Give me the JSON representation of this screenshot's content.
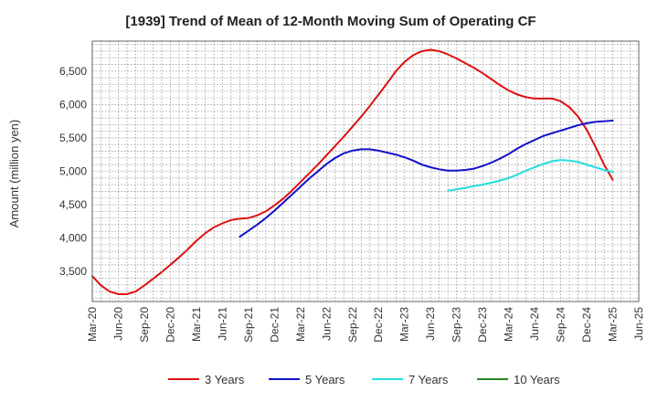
{
  "chart_data": {
    "type": "line",
    "title": "[1939]  Trend of Mean of 12-Month Moving Sum of Operating CF",
    "xlabel": "",
    "ylabel": "Amount (million yen)",
    "x_ticks": [
      "Mar-20",
      "Jun-20",
      "Sep-20",
      "Dec-20",
      "Mar-21",
      "Jun-21",
      "Sep-21",
      "Dec-21",
      "Mar-22",
      "Jun-22",
      "Sep-22",
      "Dec-22",
      "Mar-23",
      "Jun-23",
      "Sep-23",
      "Dec-23",
      "Mar-24",
      "Jun-24",
      "Sep-24",
      "Dec-24",
      "Mar-25",
      "Jun-25"
    ],
    "y_ticks": [
      3500,
      4000,
      4500,
      5000,
      5500,
      6000,
      6500
    ],
    "y_tick_labels": [
      "3,500",
      "4,000",
      "4,500",
      "5,000",
      "5,500",
      "6,000",
      "6,500"
    ],
    "ylim": [
      3050,
      6950
    ],
    "xlim": [
      0,
      63
    ],
    "grid": true,
    "legend_position": "bottom",
    "series": [
      {
        "name": "3 Years",
        "color": "#dd1111",
        "x": [
          0,
          1,
          2,
          3,
          4,
          5,
          6,
          7,
          8,
          9,
          10,
          11,
          12,
          13,
          14,
          15,
          16,
          17,
          18,
          19,
          20,
          21,
          22,
          23,
          24,
          25,
          26,
          27,
          28,
          29,
          30,
          31,
          32,
          33,
          34,
          35,
          36,
          37,
          38,
          39,
          40,
          41,
          42,
          43,
          44,
          45,
          46,
          47,
          48,
          49,
          50,
          51,
          52,
          53,
          54,
          55,
          56,
          57,
          58,
          59,
          60
        ],
        "values": [
          3430,
          3290,
          3200,
          3160,
          3160,
          3200,
          3290,
          3390,
          3490,
          3600,
          3710,
          3830,
          3960,
          4070,
          4160,
          4220,
          4270,
          4290,
          4300,
          4340,
          4400,
          4490,
          4590,
          4710,
          4840,
          4970,
          5100,
          5240,
          5380,
          5520,
          5670,
          5820,
          5980,
          6150,
          6320,
          6500,
          6640,
          6740,
          6800,
          6820,
          6800,
          6750,
          6690,
          6620,
          6550,
          6470,
          6380,
          6290,
          6210,
          6150,
          6110,
          6090,
          6090,
          6090,
          6050,
          5960,
          5820,
          5620,
          5370,
          5100,
          4870
        ]
      },
      {
        "name": "5 Years",
        "color": "#1111cc",
        "x": [
          17,
          18,
          19,
          20,
          21,
          22,
          23,
          24,
          25,
          26,
          27,
          28,
          29,
          30,
          31,
          32,
          33,
          34,
          35,
          36,
          37,
          38,
          39,
          40,
          41,
          42,
          43,
          44,
          45,
          46,
          47,
          48,
          49,
          50,
          51,
          52,
          53,
          54,
          55,
          56,
          57,
          58,
          59,
          60
        ],
        "values": [
          4020,
          4110,
          4200,
          4300,
          4410,
          4530,
          4650,
          4770,
          4890,
          5000,
          5110,
          5200,
          5270,
          5310,
          5330,
          5330,
          5310,
          5280,
          5250,
          5210,
          5160,
          5100,
          5060,
          5030,
          5010,
          5010,
          5020,
          5040,
          5080,
          5130,
          5190,
          5260,
          5340,
          5410,
          5470,
          5530,
          5570,
          5610,
          5650,
          5690,
          5720,
          5740,
          5750,
          5760
        ]
      },
      {
        "name": "7 Years",
        "color": "#22dddd",
        "x": [
          41,
          42,
          43,
          44,
          45,
          46,
          47,
          48,
          49,
          50,
          51,
          52,
          53,
          54,
          55,
          56,
          57,
          58,
          59,
          60
        ],
        "values": [
          4710,
          4730,
          4750,
          4780,
          4800,
          4830,
          4860,
          4900,
          4950,
          5010,
          5060,
          5110,
          5150,
          5170,
          5160,
          5140,
          5100,
          5060,
          5020,
          4990
        ]
      },
      {
        "name": "10 Years",
        "color": "#228822",
        "x": [],
        "values": []
      }
    ]
  }
}
